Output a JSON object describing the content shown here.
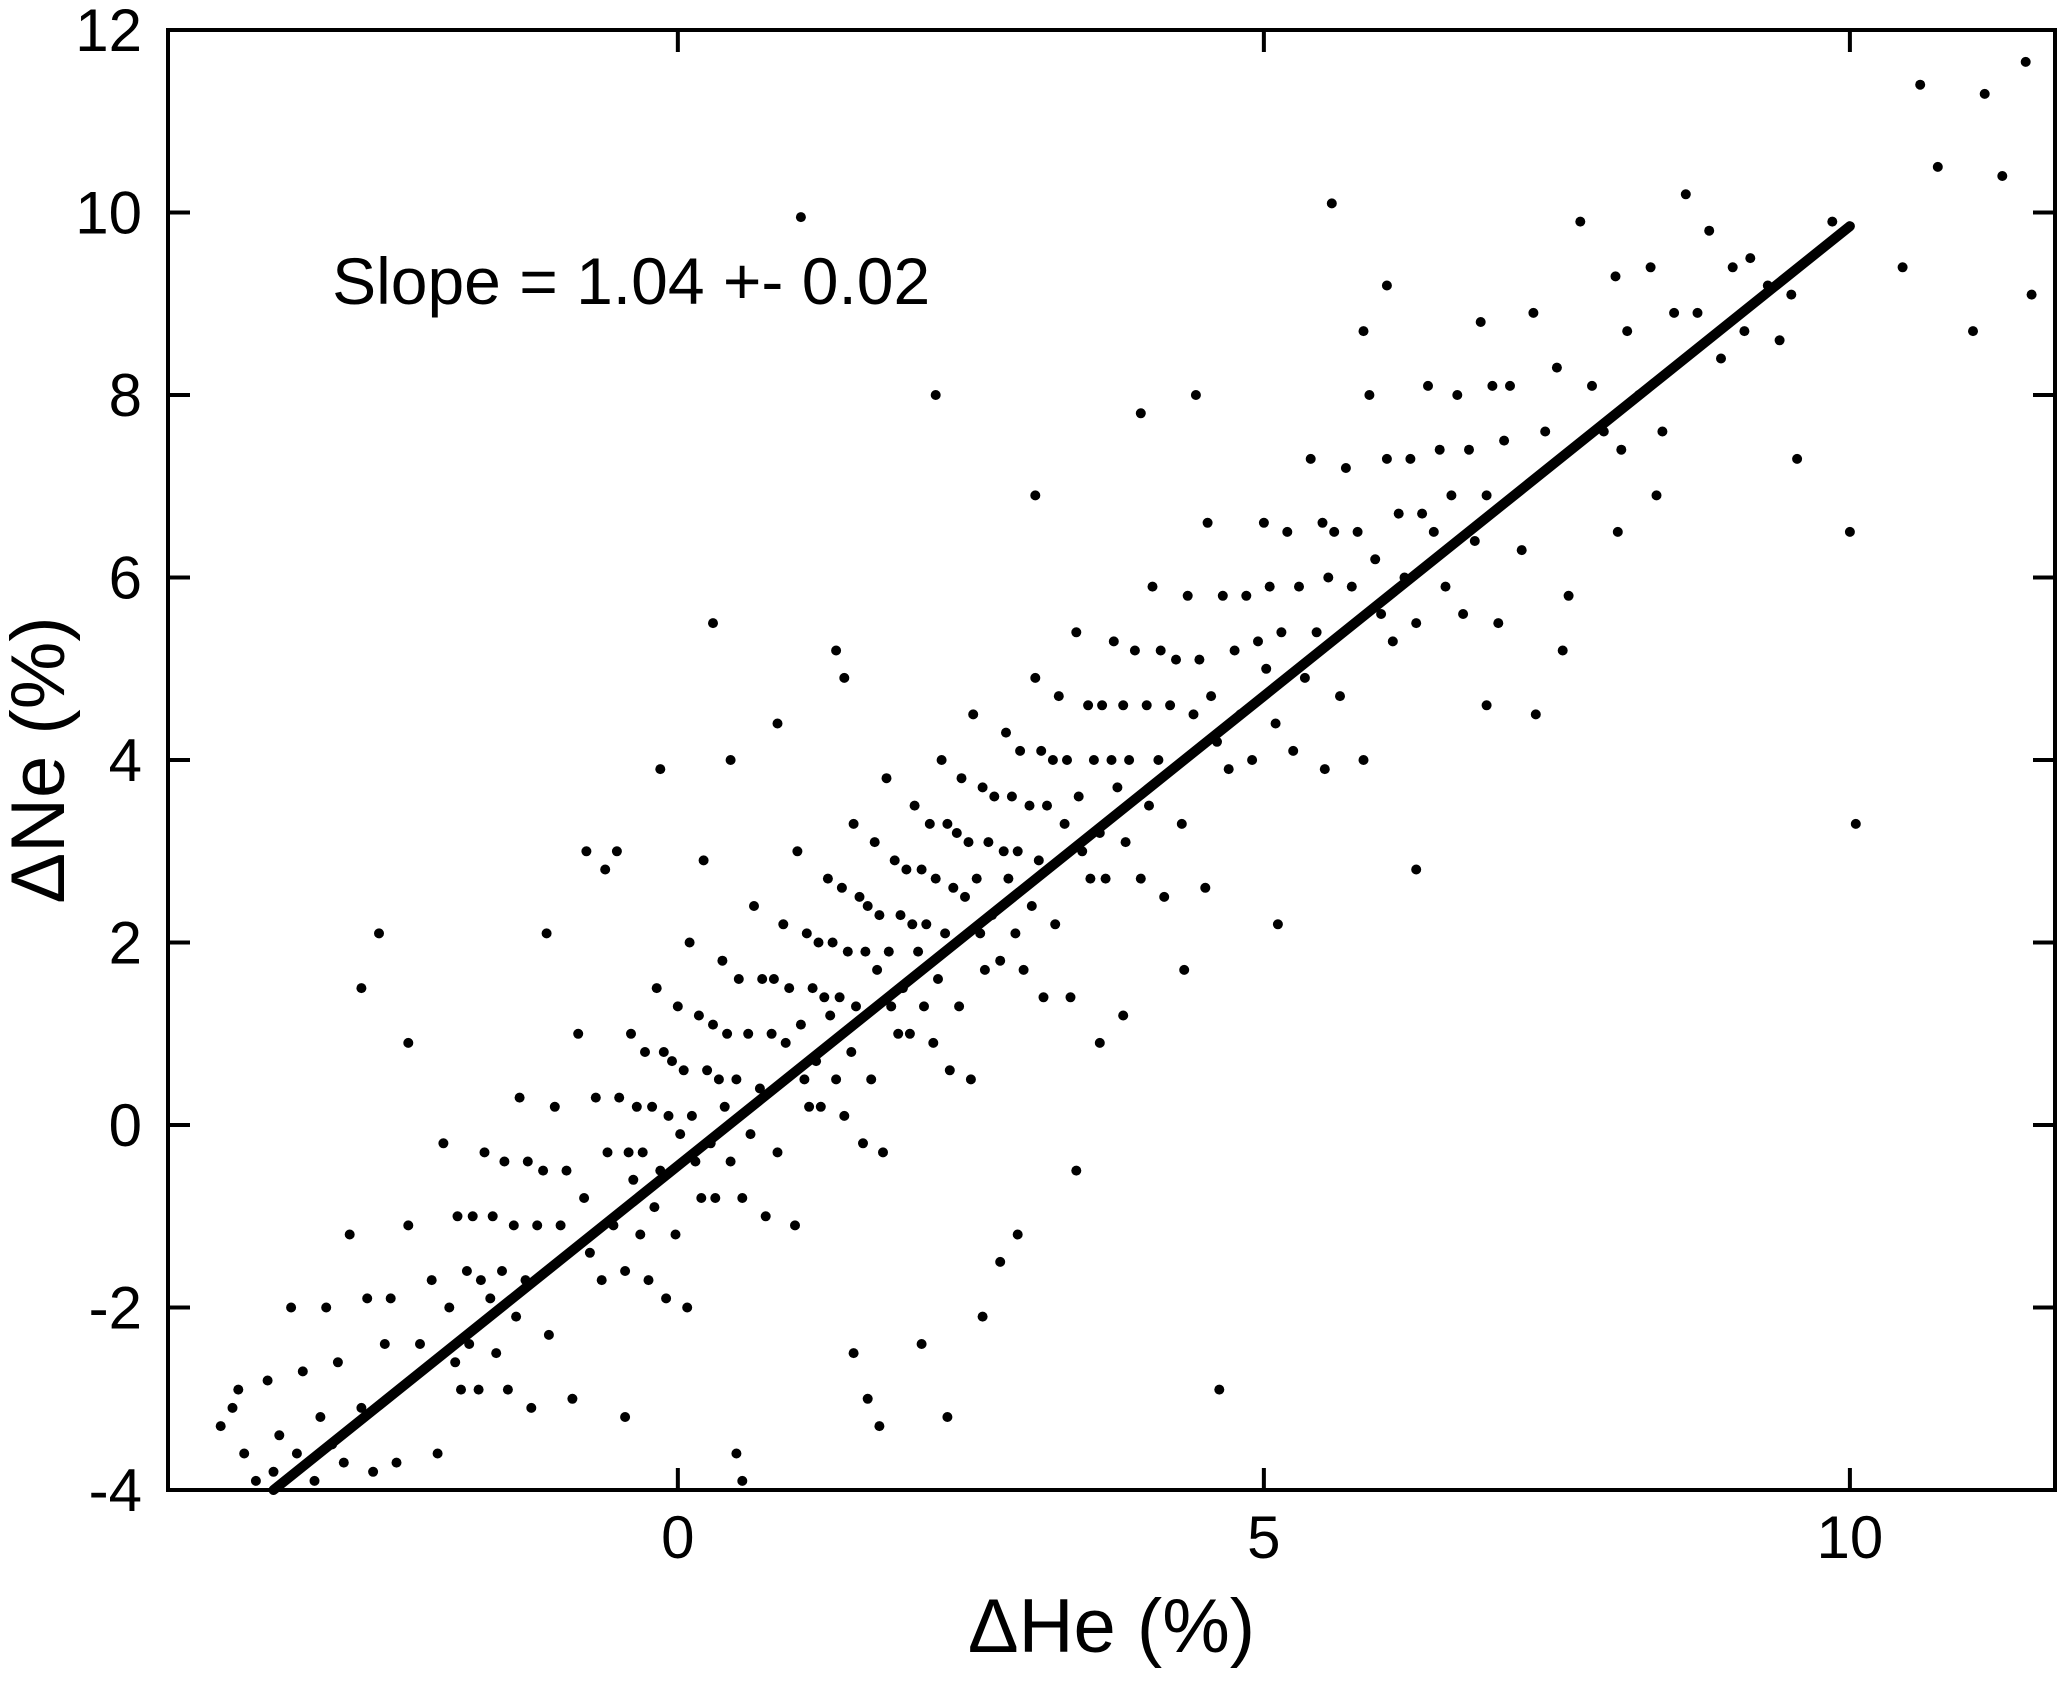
{
  "figure": {
    "background": "#ffffff",
    "axis_color": "#000000",
    "point_color": "#000000",
    "line_color": "#000000"
  },
  "chart_data": {
    "type": "scatter",
    "title": "",
    "xlabel": "ΔHe (%)",
    "ylabel": "ΔNe (%)",
    "xlim": [
      -4.35,
      11.75
    ],
    "ylim": [
      -4,
      12
    ],
    "xticks": [
      0,
      5,
      10
    ],
    "yticks": [
      -4,
      -2,
      0,
      2,
      4,
      6,
      8,
      10,
      12
    ],
    "grid": false,
    "legend": null,
    "annotation": {
      "text": "Slope = 1.04 +- 0.02",
      "x": -2.95,
      "y": 9.0
    },
    "fit_line": {
      "slope": 1.04,
      "slope_err": 0.02,
      "x1": -3.45,
      "y1": -4.0,
      "x2": 10.0,
      "y2": 9.85
    },
    "points": [
      [
        -3.9,
        -3.3
      ],
      [
        -3.8,
        -3.1
      ],
      [
        -3.75,
        -2.9
      ],
      [
        -3.7,
        -3.6
      ],
      [
        -3.6,
        -3.9
      ],
      [
        -3.5,
        -2.8
      ],
      [
        -3.45,
        -3.8
      ],
      [
        -3.4,
        -3.4
      ],
      [
        -3.3,
        -2.0
      ],
      [
        -3.25,
        -3.6
      ],
      [
        -3.2,
        -2.7
      ],
      [
        -3.1,
        -3.9
      ],
      [
        -3.05,
        -3.2
      ],
      [
        -3.0,
        -2.0
      ],
      [
        -2.95,
        -3.5
      ],
      [
        -2.9,
        -2.6
      ],
      [
        -2.85,
        -3.7
      ],
      [
        -2.8,
        -1.2
      ],
      [
        -2.7,
        -3.1
      ],
      [
        -2.65,
        -1.9
      ],
      [
        -2.6,
        -3.8
      ],
      [
        -2.5,
        -2.4
      ],
      [
        -2.45,
        -1.9
      ],
      [
        -2.4,
        -3.7
      ],
      [
        -2.3,
        -1.1
      ],
      [
        -2.2,
        -2.4
      ],
      [
        -2.1,
        -1.7
      ],
      [
        -2.05,
        -3.6
      ],
      [
        -2.55,
        2.1
      ],
      [
        -2.3,
        0.9
      ],
      [
        -2.7,
        1.5
      ],
      [
        -2.0,
        -0.2
      ],
      [
        -1.95,
        -2.0
      ],
      [
        -1.9,
        -2.6
      ],
      [
        -1.88,
        -1.0
      ],
      [
        -1.85,
        -2.9
      ],
      [
        -1.8,
        -1.6
      ],
      [
        -1.78,
        -2.4
      ],
      [
        -1.75,
        -1.0
      ],
      [
        -1.7,
        -2.9
      ],
      [
        -1.68,
        -1.7
      ],
      [
        -1.65,
        -0.3
      ],
      [
        -1.6,
        -1.9
      ],
      [
        -1.58,
        -1.0
      ],
      [
        -1.55,
        -2.5
      ],
      [
        -1.5,
        -1.6
      ],
      [
        -1.48,
        -0.4
      ],
      [
        -1.45,
        -2.9
      ],
      [
        -1.4,
        -1.1
      ],
      [
        -1.38,
        -2.1
      ],
      [
        -1.35,
        0.3
      ],
      [
        -1.3,
        -1.7
      ],
      [
        -1.28,
        -0.4
      ],
      [
        -1.25,
        -3.1
      ],
      [
        -1.2,
        -1.1
      ],
      [
        -1.15,
        -0.5
      ],
      [
        -1.1,
        -2.3
      ],
      [
        -1.05,
        0.2
      ],
      [
        -1.0,
        -1.1
      ],
      [
        -0.95,
        -0.5
      ],
      [
        -0.9,
        -3.0
      ],
      [
        -0.85,
        1.0
      ],
      [
        -0.8,
        -0.8
      ],
      [
        -0.75,
        -1.4
      ],
      [
        -0.7,
        0.3
      ],
      [
        -0.65,
        -1.7
      ],
      [
        -0.6,
        -0.3
      ],
      [
        -0.55,
        -1.1
      ],
      [
        -0.5,
        0.3
      ],
      [
        -0.62,
        2.8
      ],
      [
        -0.78,
        3.0
      ],
      [
        -1.12,
        2.1
      ],
      [
        -0.45,
        -3.2
      ],
      [
        -0.45,
        -1.6
      ],
      [
        -0.42,
        -0.3
      ],
      [
        -0.4,
        1.0
      ],
      [
        -0.38,
        -0.6
      ],
      [
        -0.35,
        0.2
      ],
      [
        -0.32,
        -1.2
      ],
      [
        -0.3,
        -0.3
      ],
      [
        -0.28,
        0.8
      ],
      [
        -0.25,
        -1.7
      ],
      [
        -0.22,
        0.2
      ],
      [
        -0.2,
        -0.9
      ],
      [
        -0.18,
        1.5
      ],
      [
        -0.15,
        -0.5
      ],
      [
        -0.12,
        0.8
      ],
      [
        -0.1,
        -1.9
      ],
      [
        -0.08,
        0.1
      ],
      [
        -0.05,
        0.7
      ],
      [
        -0.02,
        -1.2
      ],
      [
        0.0,
        1.3
      ],
      [
        0.02,
        -0.1
      ],
      [
        0.05,
        0.6
      ],
      [
        0.08,
        -2.0
      ],
      [
        0.1,
        2.0
      ],
      [
        0.12,
        0.1
      ],
      [
        0.15,
        -0.4
      ],
      [
        0.18,
        1.2
      ],
      [
        0.2,
        -0.8
      ],
      [
        0.25,
        0.6
      ],
      [
        0.28,
        -0.2
      ],
      [
        0.3,
        1.1
      ],
      [
        0.32,
        -0.8
      ],
      [
        0.35,
        0.5
      ],
      [
        0.38,
        1.8
      ],
      [
        0.4,
        0.2
      ],
      [
        0.42,
        1.0
      ],
      [
        0.45,
        -0.4
      ],
      [
        0.5,
        0.5
      ],
      [
        0.52,
        1.6
      ],
      [
        0.55,
        -0.8
      ],
      [
        0.6,
        1.0
      ],
      [
        0.62,
        -0.1
      ],
      [
        0.65,
        2.4
      ],
      [
        0.7,
        0.4
      ],
      [
        0.72,
        1.6
      ],
      [
        0.75,
        -1.0
      ],
      [
        0.8,
        1.0
      ],
      [
        0.82,
        1.6
      ],
      [
        0.85,
        -0.3
      ],
      [
        0.9,
        2.2
      ],
      [
        0.92,
        0.9
      ],
      [
        0.95,
        1.5
      ],
      [
        1.0,
        -1.1
      ],
      [
        0.3,
        5.5
      ],
      [
        1.05,
        9.95
      ],
      [
        0.5,
        -3.6
      ],
      [
        0.55,
        -3.9
      ],
      [
        -0.15,
        3.9
      ],
      [
        -0.52,
        3.0
      ],
      [
        0.85,
        4.4
      ],
      [
        0.45,
        4.0
      ],
      [
        0.22,
        2.9
      ],
      [
        1.02,
        3.0
      ],
      [
        1.05,
        1.1
      ],
      [
        1.08,
        0.5
      ],
      [
        1.1,
        2.1
      ],
      [
        1.12,
        0.2
      ],
      [
        1.15,
        1.5
      ],
      [
        1.18,
        0.7
      ],
      [
        1.2,
        2.0
      ],
      [
        1.22,
        0.2
      ],
      [
        1.25,
        1.4
      ],
      [
        1.28,
        2.7
      ],
      [
        1.3,
        1.2
      ],
      [
        1.32,
        2.0
      ],
      [
        1.35,
        0.5
      ],
      [
        1.38,
        1.4
      ],
      [
        1.4,
        2.6
      ],
      [
        1.42,
        0.1
      ],
      [
        1.45,
        1.9
      ],
      [
        1.48,
        0.8
      ],
      [
        1.5,
        3.3
      ],
      [
        1.52,
        1.3
      ],
      [
        1.55,
        2.5
      ],
      [
        1.58,
        -0.2
      ],
      [
        1.6,
        1.9
      ],
      [
        1.62,
        2.4
      ],
      [
        1.65,
        0.5
      ],
      [
        1.68,
        3.1
      ],
      [
        1.7,
        1.7
      ],
      [
        1.72,
        2.3
      ],
      [
        1.75,
        -0.3
      ],
      [
        1.78,
        3.8
      ],
      [
        1.8,
        1.9
      ],
      [
        1.82,
        1.3
      ],
      [
        1.85,
        2.9
      ],
      [
        1.88,
        1.0
      ],
      [
        1.9,
        2.3
      ],
      [
        1.92,
        1.5
      ],
      [
        1.95,
        2.8
      ],
      [
        1.98,
        1.0
      ],
      [
        2.0,
        2.2
      ],
      [
        2.02,
        3.5
      ],
      [
        2.05,
        1.9
      ],
      [
        2.08,
        2.8
      ],
      [
        2.1,
        1.3
      ],
      [
        2.12,
        2.2
      ],
      [
        2.15,
        3.3
      ],
      [
        2.18,
        0.9
      ],
      [
        2.2,
        2.7
      ],
      [
        2.22,
        1.6
      ],
      [
        2.25,
        4.0
      ],
      [
        2.28,
        2.1
      ],
      [
        2.3,
        3.3
      ],
      [
        2.32,
        0.6
      ],
      [
        2.35,
        2.6
      ],
      [
        2.38,
        3.2
      ],
      [
        2.4,
        1.3
      ],
      [
        2.42,
        3.8
      ],
      [
        2.45,
        2.5
      ],
      [
        2.48,
        3.1
      ],
      [
        2.5,
        0.5
      ],
      [
        1.5,
        -2.5
      ],
      [
        1.62,
        -3.0
      ],
      [
        1.72,
        -3.3
      ],
      [
        2.08,
        -2.4
      ],
      [
        2.3,
        -3.2
      ],
      [
        1.35,
        5.2
      ],
      [
        1.42,
        4.9
      ],
      [
        2.2,
        8.0
      ],
      [
        2.6,
        -2.1
      ],
      [
        2.75,
        -1.5
      ],
      [
        2.52,
        4.5
      ],
      [
        2.55,
        2.7
      ],
      [
        2.58,
        2.1
      ],
      [
        2.6,
        3.7
      ],
      [
        2.62,
        1.7
      ],
      [
        2.65,
        3.1
      ],
      [
        2.68,
        2.3
      ],
      [
        2.7,
        3.6
      ],
      [
        2.75,
        1.8
      ],
      [
        2.78,
        3.0
      ],
      [
        2.8,
        4.3
      ],
      [
        2.82,
        2.7
      ],
      [
        2.85,
        3.6
      ],
      [
        2.88,
        2.1
      ],
      [
        2.9,
        3.0
      ],
      [
        2.92,
        4.1
      ],
      [
        2.95,
        1.7
      ],
      [
        3.0,
        3.5
      ],
      [
        3.02,
        2.4
      ],
      [
        3.05,
        4.9
      ],
      [
        3.08,
        2.9
      ],
      [
        3.1,
        4.1
      ],
      [
        3.12,
        1.4
      ],
      [
        3.15,
        3.5
      ],
      [
        3.2,
        4.0
      ],
      [
        3.22,
        2.2
      ],
      [
        3.25,
        4.7
      ],
      [
        3.3,
        3.3
      ],
      [
        3.32,
        4.0
      ],
      [
        3.35,
        1.4
      ],
      [
        3.4,
        5.4
      ],
      [
        3.42,
        3.6
      ],
      [
        3.45,
        3.0
      ],
      [
        3.5,
        4.6
      ],
      [
        3.52,
        2.7
      ],
      [
        3.55,
        4.0
      ],
      [
        3.6,
        3.2
      ],
      [
        3.62,
        4.6
      ],
      [
        3.65,
        2.7
      ],
      [
        3.7,
        4.0
      ],
      [
        3.72,
        5.3
      ],
      [
        3.75,
        3.7
      ],
      [
        3.8,
        4.6
      ],
      [
        3.82,
        3.1
      ],
      [
        3.85,
        4.0
      ],
      [
        3.9,
        5.2
      ],
      [
        3.95,
        2.7
      ],
      [
        4.0,
        4.6
      ],
      [
        3.05,
        6.9
      ],
      [
        3.4,
        -0.5
      ],
      [
        3.6,
        0.9
      ],
      [
        2.9,
        -1.2
      ],
      [
        3.8,
        1.2
      ],
      [
        3.95,
        7.8
      ],
      [
        4.02,
        3.5
      ],
      [
        4.05,
        5.9
      ],
      [
        4.1,
        4.0
      ],
      [
        4.12,
        5.2
      ],
      [
        4.15,
        2.5
      ],
      [
        4.2,
        4.6
      ],
      [
        4.25,
        5.1
      ],
      [
        4.3,
        3.3
      ],
      [
        4.35,
        5.8
      ],
      [
        4.4,
        4.5
      ],
      [
        4.45,
        5.1
      ],
      [
        4.5,
        2.6
      ],
      [
        4.52,
        6.6
      ],
      [
        4.55,
        4.7
      ],
      [
        4.6,
        4.2
      ],
      [
        4.65,
        5.8
      ],
      [
        4.7,
        3.9
      ],
      [
        4.75,
        5.2
      ],
      [
        4.8,
        4.5
      ],
      [
        4.85,
        5.8
      ],
      [
        4.9,
        4.0
      ],
      [
        4.95,
        5.3
      ],
      [
        5.0,
        6.6
      ],
      [
        5.02,
        5.0
      ],
      [
        5.05,
        5.9
      ],
      [
        5.1,
        4.4
      ],
      [
        5.15,
        5.4
      ],
      [
        5.2,
        6.5
      ],
      [
        5.25,
        4.1
      ],
      [
        5.3,
        5.9
      ],
      [
        5.35,
        4.9
      ],
      [
        5.4,
        7.3
      ],
      [
        5.45,
        5.4
      ],
      [
        5.5,
        6.6
      ],
      [
        4.32,
        1.7
      ],
      [
        4.62,
        -2.9
      ],
      [
        5.58,
        10.1
      ],
      [
        4.42,
        8.0
      ],
      [
        5.12,
        2.2
      ],
      [
        5.52,
        3.9
      ],
      [
        5.55,
        6.0
      ],
      [
        5.6,
        6.5
      ],
      [
        5.65,
        4.7
      ],
      [
        5.7,
        7.2
      ],
      [
        5.75,
        5.9
      ],
      [
        5.8,
        6.5
      ],
      [
        5.85,
        4.0
      ],
      [
        5.9,
        8.0
      ],
      [
        5.95,
        6.2
      ],
      [
        6.0,
        5.6
      ],
      [
        6.05,
        7.3
      ],
      [
        6.1,
        5.3
      ],
      [
        6.15,
        6.7
      ],
      [
        6.2,
        6.0
      ],
      [
        6.25,
        7.3
      ],
      [
        6.3,
        5.5
      ],
      [
        6.35,
        6.7
      ],
      [
        6.4,
        8.1
      ],
      [
        6.45,
        6.5
      ],
      [
        6.5,
        7.4
      ],
      [
        6.55,
        5.9
      ],
      [
        6.6,
        6.9
      ],
      [
        6.65,
        8.0
      ],
      [
        6.7,
        5.6
      ],
      [
        6.75,
        7.4
      ],
      [
        6.8,
        6.4
      ],
      [
        6.85,
        8.8
      ],
      [
        6.9,
        6.9
      ],
      [
        6.95,
        8.1
      ],
      [
        7.0,
        5.5
      ],
      [
        6.3,
        2.8
      ],
      [
        6.05,
        9.2
      ],
      [
        6.9,
        4.6
      ],
      [
        5.85,
        8.7
      ],
      [
        7.05,
        7.5
      ],
      [
        7.1,
        8.1
      ],
      [
        7.2,
        6.3
      ],
      [
        7.3,
        8.9
      ],
      [
        7.4,
        7.6
      ],
      [
        7.5,
        8.3
      ],
      [
        7.6,
        5.8
      ],
      [
        7.7,
        9.9
      ],
      [
        7.8,
        8.1
      ],
      [
        7.9,
        7.6
      ],
      [
        8.0,
        9.3
      ],
      [
        8.05,
        7.4
      ],
      [
        8.1,
        8.7
      ],
      [
        8.2,
        8.0
      ],
      [
        8.3,
        9.4
      ],
      [
        8.4,
        7.6
      ],
      [
        8.5,
        8.9
      ],
      [
        8.6,
        10.2
      ],
      [
        8.7,
        8.9
      ],
      [
        8.8,
        9.8
      ],
      [
        8.9,
        8.4
      ],
      [
        9.0,
        9.4
      ],
      [
        7.32,
        4.5
      ],
      [
        8.02,
        6.5
      ],
      [
        7.55,
        5.2
      ],
      [
        8.35,
        6.9
      ],
      [
        9.1,
        8.7
      ],
      [
        9.15,
        9.5
      ],
      [
        9.3,
        9.2
      ],
      [
        9.4,
        8.6
      ],
      [
        9.5,
        9.1
      ],
      [
        9.55,
        7.3
      ],
      [
        10.0,
        6.5
      ],
      [
        10.05,
        3.3
      ],
      [
        10.45,
        9.4
      ],
      [
        10.6,
        11.4
      ],
      [
        10.75,
        10.5
      ],
      [
        11.05,
        8.7
      ],
      [
        11.15,
        11.3
      ],
      [
        11.3,
        10.4
      ],
      [
        11.5,
        11.65
      ],
      [
        11.55,
        9.1
      ],
      [
        9.85,
        9.9
      ]
    ]
  }
}
